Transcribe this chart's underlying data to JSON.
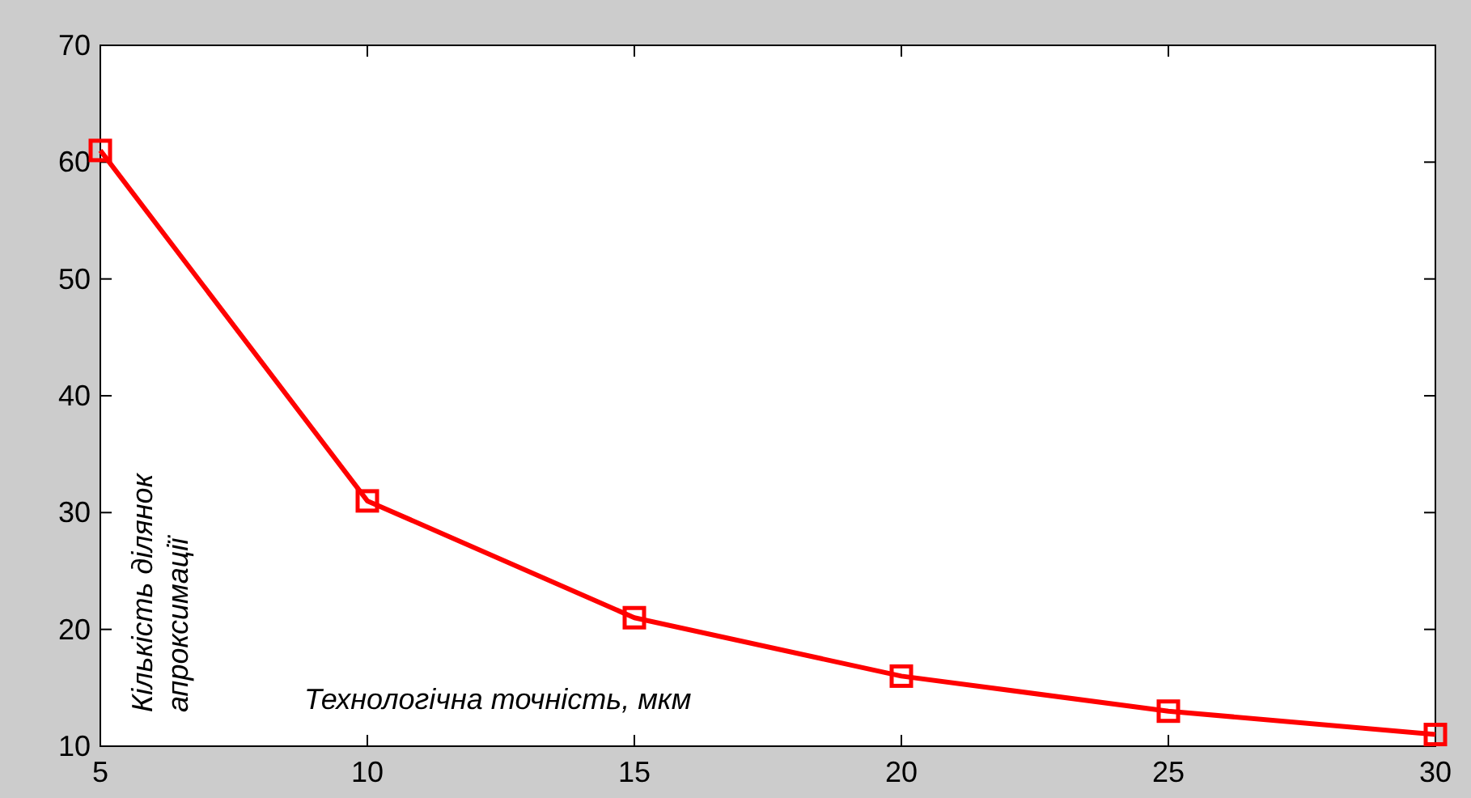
{
  "chart_data": {
    "type": "line",
    "xlabel": "Технологічна точність, мкм",
    "ylabel": "Кількість ділянок\nапроксимації",
    "x": [
      5,
      10,
      15,
      20,
      25,
      30
    ],
    "series": [
      {
        "color": "#ff0000",
        "values": [
          61,
          31,
          21,
          16,
          13,
          11
        ]
      }
    ],
    "xlim": [
      5,
      30
    ],
    "xticks": [
      5,
      10,
      15,
      20,
      25,
      30
    ],
    "ylim": [
      10,
      70
    ],
    "yticks": [
      10,
      20,
      30,
      40,
      50,
      60,
      70
    ],
    "marker": "square",
    "line_style": "solid",
    "grid": false
  }
}
